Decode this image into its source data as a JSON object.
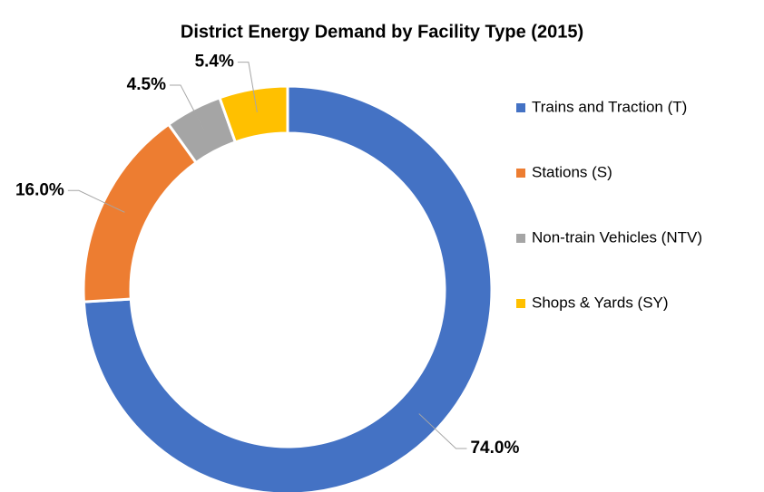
{
  "chart_data": {
    "type": "donut",
    "title": "District Energy Demand by Facility Type (2015)",
    "categories": [
      "Trains and Traction (T)",
      "Stations  (S)",
      "Non-train Vehicles (NTV)",
      "Shops & Yards (SY)"
    ],
    "values": [
      74.0,
      16.0,
      4.5,
      5.4
    ],
    "value_labels": [
      "74.0%",
      "16.0%",
      "4.5%",
      "5.4%"
    ],
    "colors": [
      "#4472c4",
      "#ed7d31",
      "#a5a5a5",
      "#ffc000"
    ],
    "legend": "right"
  }
}
